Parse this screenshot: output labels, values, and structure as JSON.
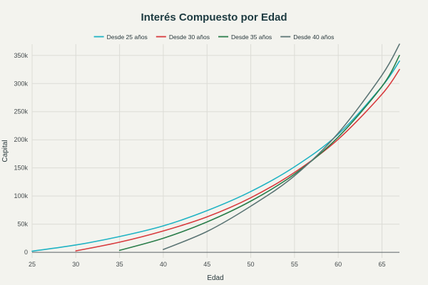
{
  "chart_data": {
    "type": "line",
    "title": "Interés Compuesto por Edad",
    "xlabel": "Edad",
    "ylabel": "Capital",
    "xlim": [
      25,
      67
    ],
    "ylim": [
      -10000,
      370000
    ],
    "x_ticks": [
      25,
      30,
      35,
      40,
      45,
      50,
      55,
      60,
      65
    ],
    "x_tick_labels": [
      "25",
      "30",
      "35",
      "40",
      "45",
      "50",
      "55",
      "60",
      "65"
    ],
    "y_ticks": [
      0,
      50000,
      100000,
      150000,
      200000,
      250000,
      300000,
      350000
    ],
    "y_tick_labels": [
      "0",
      "50k",
      "100k",
      "150k",
      "200k",
      "250k",
      "300k",
      "350k"
    ],
    "grid": true,
    "legend_position": "top",
    "series": [
      {
        "name": "Desde 25 años",
        "color": "#1fb3c4",
        "x": [
          25,
          30,
          35,
          40,
          45,
          50,
          55,
          60,
          65,
          67
        ],
        "y": [
          2000,
          13000,
          28000,
          47000,
          74000,
          108000,
          152000,
          210000,
          295000,
          340000
        ]
      },
      {
        "name": "Desde 30 años",
        "color": "#d83a3d",
        "x": [
          30,
          35,
          40,
          45,
          50,
          55,
          60,
          65,
          67
        ],
        "y": [
          2500,
          18000,
          38000,
          63000,
          97000,
          142000,
          201000,
          281000,
          325000
        ]
      },
      {
        "name": "Desde 35 años",
        "color": "#2a7d4a",
        "x": [
          35,
          40,
          45,
          50,
          55,
          60,
          65,
          67
        ],
        "y": [
          3500,
          25000,
          54000,
          91000,
          139000,
          205000,
          295000,
          350000
        ]
      },
      {
        "name": "Desde 40 años",
        "color": "#5c7575",
        "x": [
          40,
          45,
          50,
          55,
          60,
          65,
          67
        ],
        "y": [
          5000,
          37000,
          82000,
          136000,
          212000,
          315000,
          370000
        ]
      }
    ]
  }
}
